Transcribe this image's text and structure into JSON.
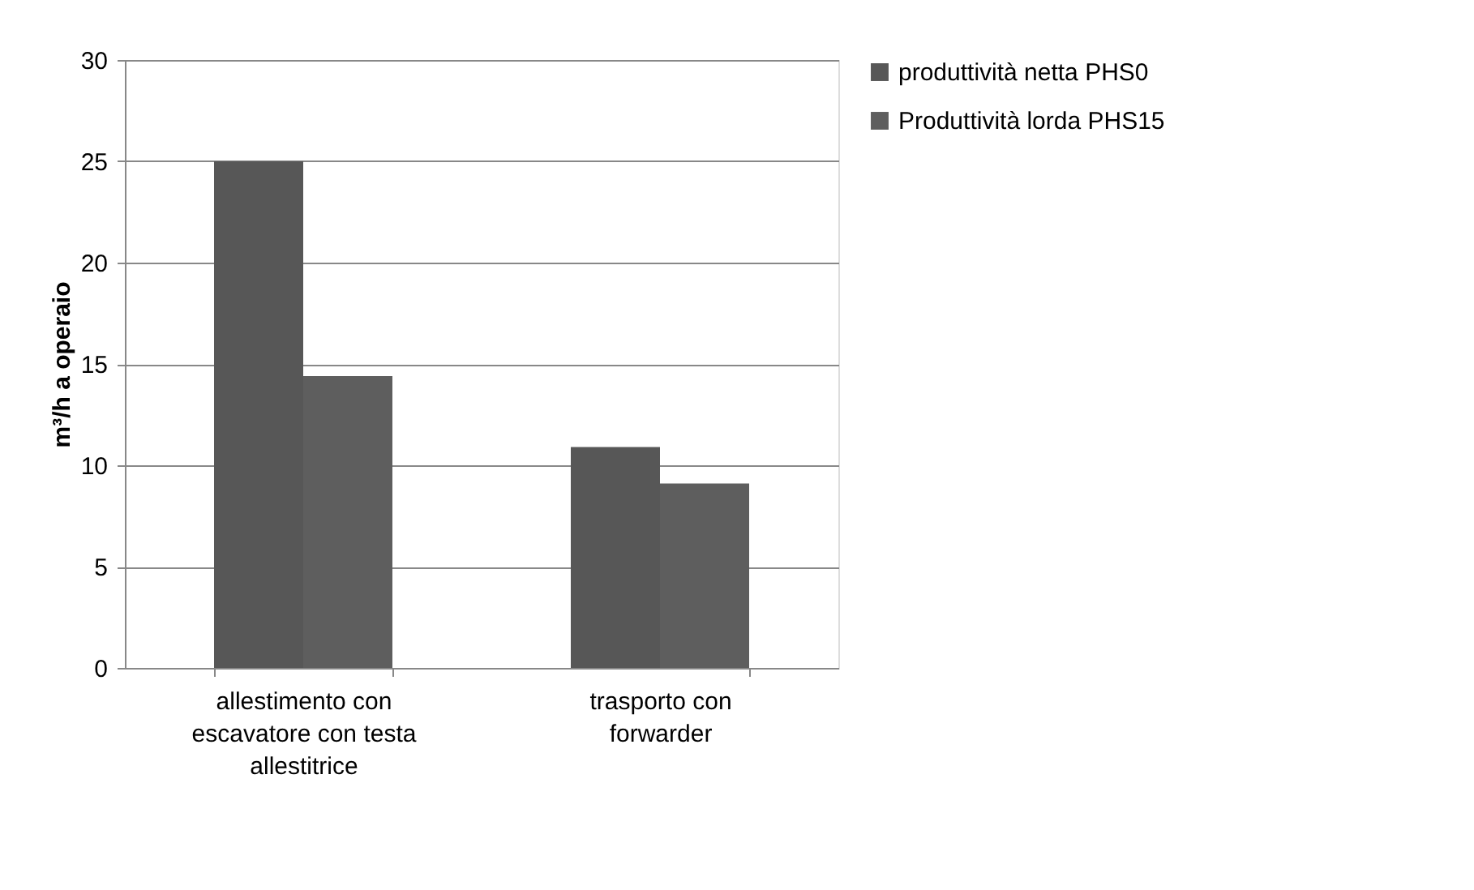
{
  "chart_data": {
    "type": "bar",
    "ylabel": "m³/h a operaio",
    "categories": [
      "allestimento con escavatore con testa allestitrice",
      "trasporto con forwarder"
    ],
    "series": [
      {
        "name": "produttività netta PHS0",
        "color": "#575757",
        "values": [
          25,
          10.9
        ]
      },
      {
        "name": "Produttività lorda PHS15",
        "color": "#5e5e5e",
        "values": [
          14.4,
          9.1
        ]
      }
    ],
    "ylim": [
      0,
      30
    ],
    "yticks": [
      0,
      5,
      10,
      15,
      20,
      25,
      30
    ],
    "grid": "y",
    "legend": "right"
  }
}
